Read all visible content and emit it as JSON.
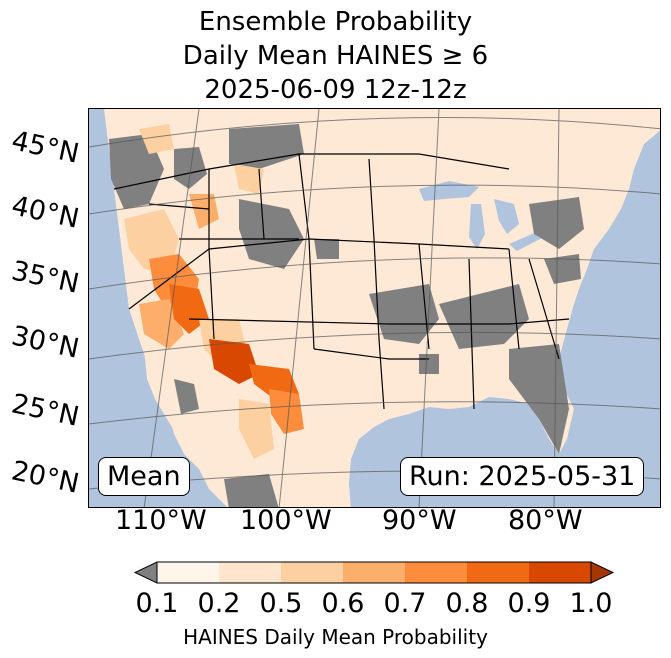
{
  "title": {
    "line1": "Ensemble Probability",
    "line2": "Daily Mean HAINES ≥ 6",
    "line3": "2025-06-09 12z-12z"
  },
  "map": {
    "lat_labels": [
      "45°N",
      "40°N",
      "35°N",
      "30°N",
      "25°N",
      "20°N"
    ],
    "lon_labels": [
      "110°W",
      "100°W",
      "90°W",
      "80°W"
    ],
    "stat_label": "Mean",
    "run_label": "Run: 2025-05-31",
    "colors": {
      "ocean": "#b0c4de",
      "land": "#fde9d6",
      "no_data": "#808080"
    }
  },
  "colorbar": {
    "ticks": [
      "0.1",
      "0.2",
      "0.5",
      "0.6",
      "0.7",
      "0.8",
      "0.9",
      "1.0"
    ],
    "colors": [
      "#fff5eb",
      "#fee6ce",
      "#fdd0a2",
      "#fdae6b",
      "#fd8d3c",
      "#f16913",
      "#d94801"
    ],
    "under_color": "#808080",
    "over_color": "#a63603",
    "label": "HAINES Daily Mean Probability"
  }
}
